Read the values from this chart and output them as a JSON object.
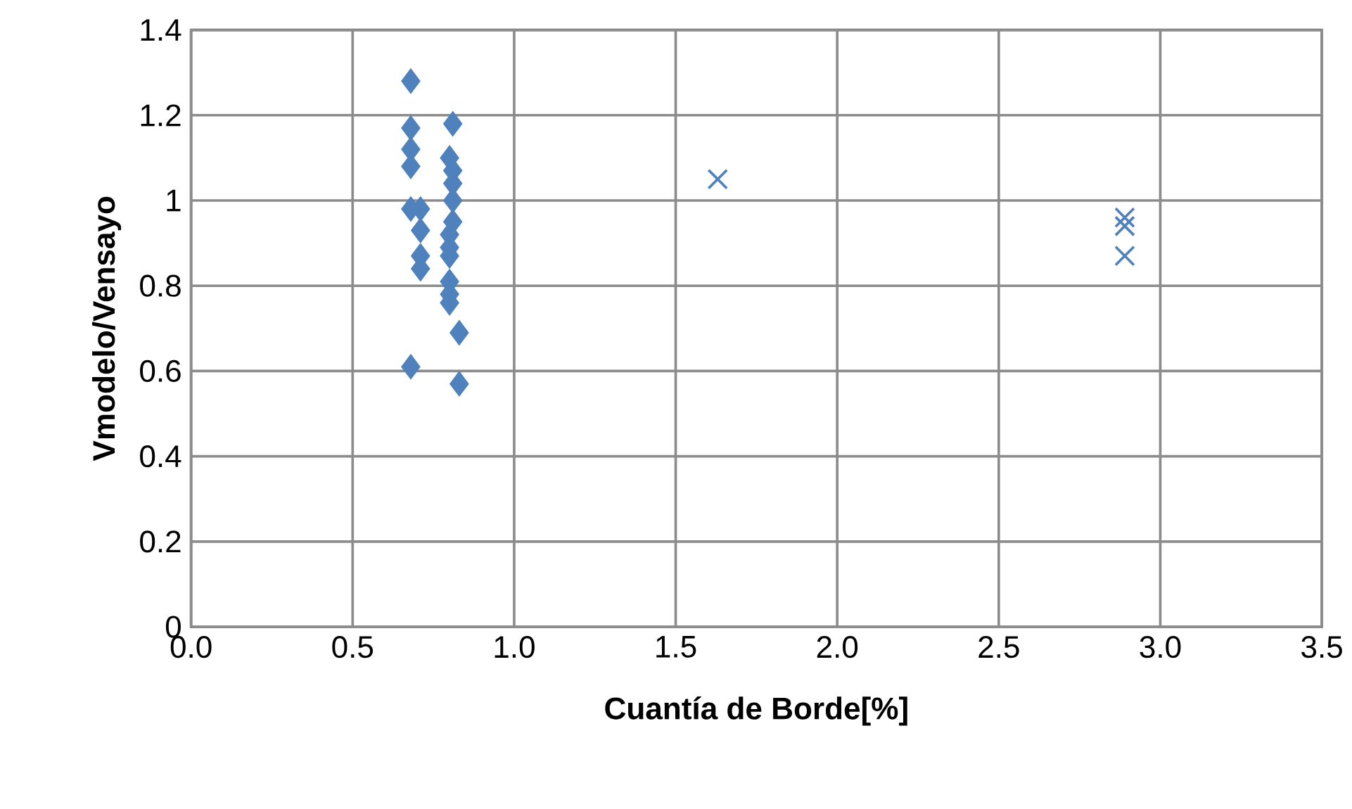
{
  "chart_data": {
    "type": "scatter",
    "xlabel": "Cuantía de Borde[%]",
    "ylabel": "Vmodelo/Vensayo",
    "xlim": [
      0,
      3.5
    ],
    "ylim": [
      0,
      1.4
    ],
    "xticks": [
      {
        "value": 0,
        "label": "0.0"
      },
      {
        "value": 0.5,
        "label": "0.5"
      },
      {
        "value": 1,
        "label": "1.0"
      },
      {
        "value": 1.5,
        "label": "1.5"
      },
      {
        "value": 2,
        "label": "2.0"
      },
      {
        "value": 2.5,
        "label": "2.5"
      },
      {
        "value": 3,
        "label": "3.0"
      },
      {
        "value": 3.5,
        "label": "3.5"
      }
    ],
    "yticks": [
      0,
      0.2,
      0.4,
      0.6,
      0.8,
      1,
      1.2,
      1.4
    ],
    "grid": true,
    "series": [
      {
        "color": "#4f81bd",
        "marker": "diamond",
        "x": [
          0.68,
          0.68,
          0.68,
          0.68,
          0.68,
          0.71,
          0.71,
          0.71,
          0.71,
          0.68,
          0.81,
          0.8,
          0.81,
          0.81,
          0.81,
          0.81,
          0.8,
          0.8,
          0.8,
          0.8,
          0.8,
          0.8,
          0.83,
          0.83
        ],
        "values": [
          1.28,
          1.17,
          1.12,
          1.08,
          0.98,
          0.98,
          0.93,
          0.87,
          0.84,
          0.61,
          1.18,
          1.1,
          1.07,
          1.04,
          1.0,
          0.95,
          0.92,
          0.89,
          0.87,
          0.81,
          0.78,
          0.76,
          0.69,
          0.57
        ]
      },
      {
        "color": "#4f81bd",
        "marker": "cross",
        "x": [
          1.63,
          2.89,
          2.89,
          2.89
        ],
        "values": [
          1.05,
          0.96,
          0.94,
          0.87
        ]
      }
    ]
  }
}
